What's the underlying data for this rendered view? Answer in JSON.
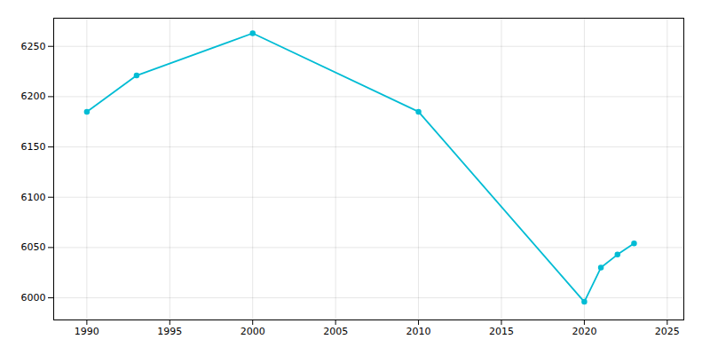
{
  "chart_data": {
    "type": "line",
    "x": [
      1990,
      1993,
      2000,
      2010,
      2020,
      2021,
      2022,
      2023
    ],
    "values": [
      6185,
      6221,
      6263,
      6185,
      5996,
      6030,
      6043,
      6054
    ],
    "color": "#00BCD4",
    "marker": "circle",
    "xlim": [
      1988,
      2026
    ],
    "ylim": [
      5978,
      6278
    ],
    "xticks": [
      1990,
      1995,
      2000,
      2005,
      2010,
      2015,
      2020,
      2025
    ],
    "yticks": [
      6000,
      6050,
      6100,
      6150,
      6200,
      6250
    ],
    "grid": true
  }
}
